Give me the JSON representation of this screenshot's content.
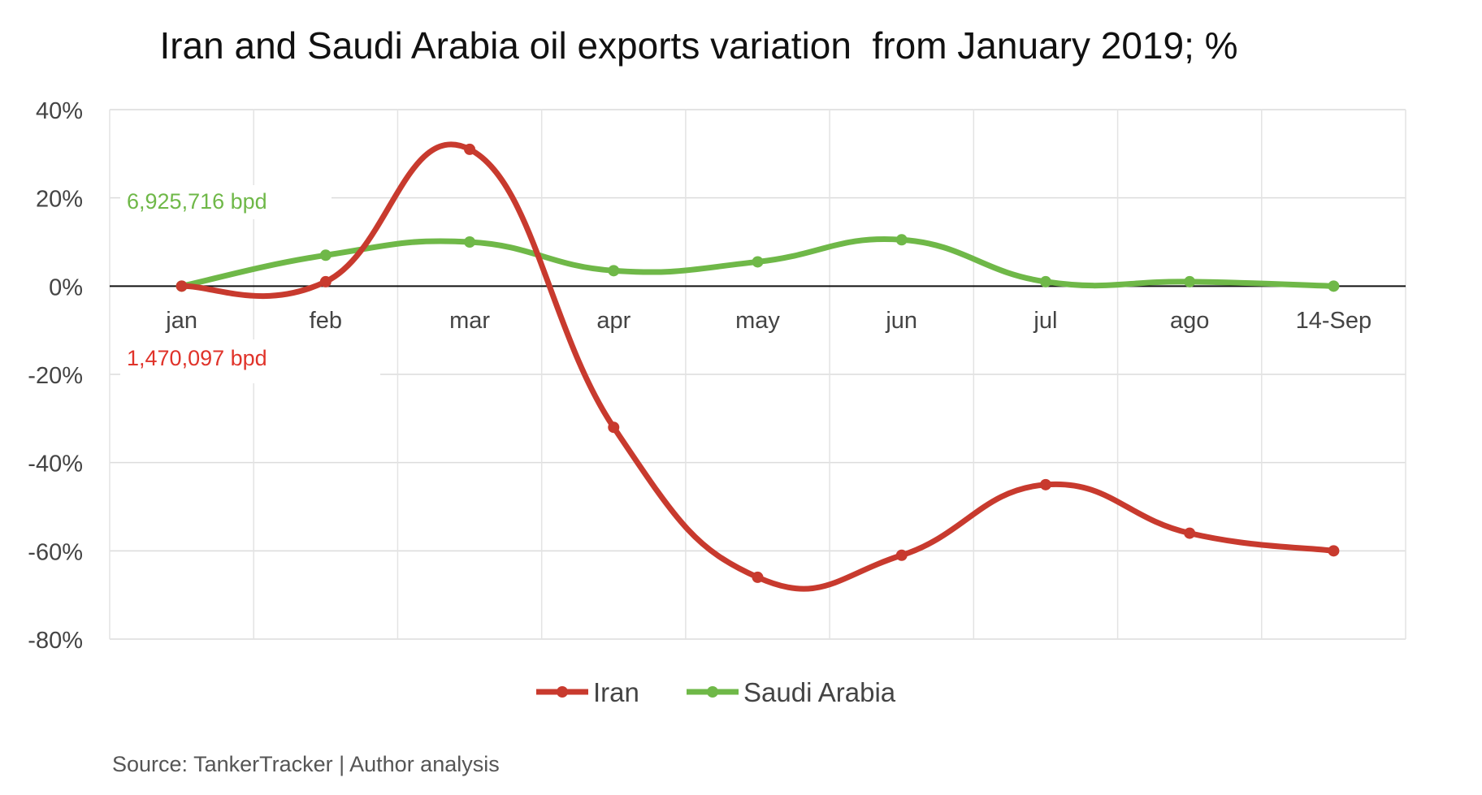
{
  "chart_data": {
    "type": "line",
    "title": "Iran and Saudi Arabia oil exports variation  from January 2019; %",
    "categories": [
      "jan",
      "feb",
      "mar",
      "apr",
      "may",
      "jun",
      "jul",
      "ago",
      "14-Sep"
    ],
    "series": [
      {
        "name": "Iran",
        "color": "#c83a2e",
        "values": [
          0,
          1,
          31,
          -32,
          -66,
          -61,
          -45,
          -56,
          -60
        ]
      },
      {
        "name": "Saudi Arabia",
        "color": "#6fb848",
        "values": [
          0,
          7,
          10,
          3.5,
          5.5,
          10.5,
          1,
          1,
          0
        ]
      }
    ],
    "ylim": [
      -80,
      40
    ],
    "yticks": [
      "40%",
      "20%",
      "0%",
      "-20%",
      "-40%",
      "-60%",
      "-80%"
    ],
    "ytick_values": [
      40,
      20,
      0,
      -20,
      -40,
      -60,
      -80
    ],
    "grid": true,
    "legend": "bottom",
    "annotations": [
      {
        "text": "6,925,716  bpd",
        "color": "#6fb848",
        "series": "Saudi Arabia"
      },
      {
        "text": "1,470,097  bpd",
        "color": "#e0332a",
        "series": "Iran"
      }
    ],
    "source": "Source: TankerTracker | Author analysis"
  }
}
